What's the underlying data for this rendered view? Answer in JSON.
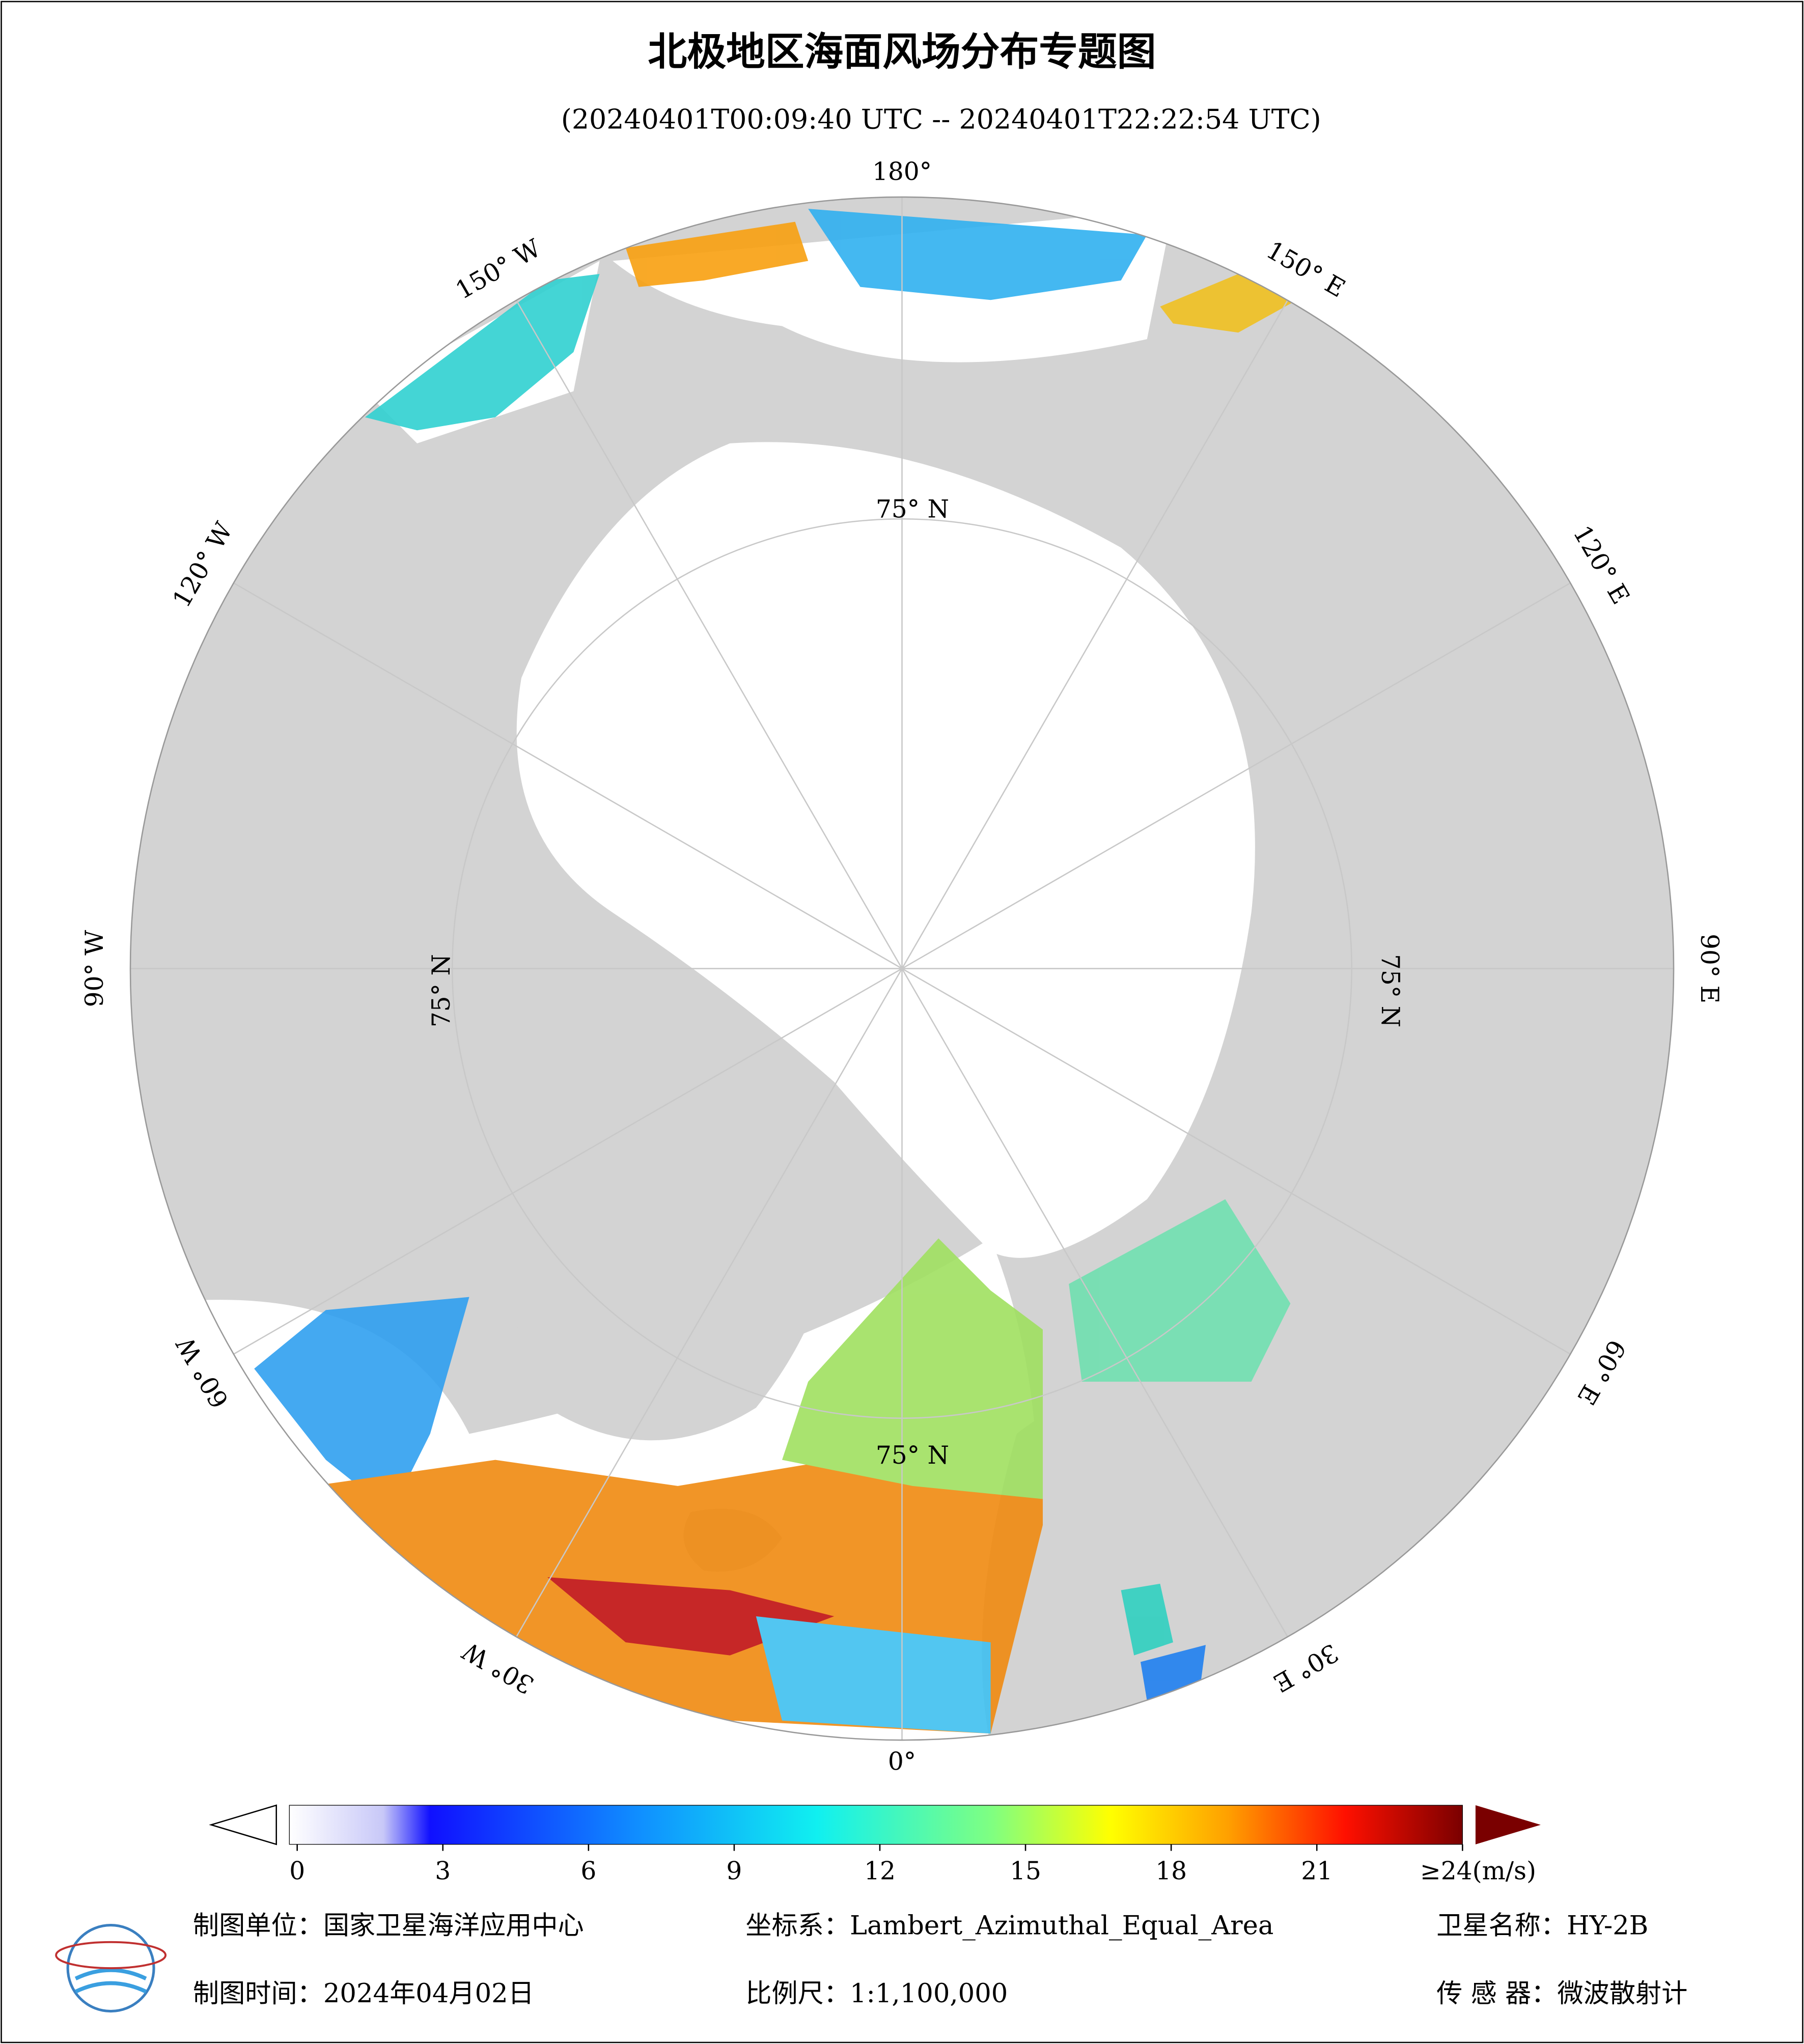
{
  "map": {
    "title": "北极地区海面风场分布专题图",
    "subtitle": "(20240401T00:09:40 UTC -- 20240401T22:22:54 UTC)",
    "lon_labels": [
      "180°",
      "150° E",
      "120° E",
      "90° E",
      "60° E",
      "30° E",
      "0°",
      "30° W",
      "60° W",
      "90° W",
      "120° W",
      "150° W"
    ],
    "lat_labels": [
      "75° N",
      "75° N",
      "75° N",
      "75° N"
    ],
    "colorbar": {
      "lim": [
        0,
        24
      ],
      "ticks": [
        0,
        3,
        6,
        9,
        12,
        15,
        18,
        21,
        {
          "value": 24,
          "label": "≥24(m/s)"
        }
      ]
    },
    "footer": {
      "unit": "制图单位：国家卫星海洋应用中心",
      "crs": "坐标系：Lambert_Azimuthal_Equal_Area",
      "satellite": "卫星名称：HY-2B",
      "date": "制图时间：2024年04月02日",
      "scale": "比例尺：1:1,100,000",
      "sensor": "传 感 器：微波散射计"
    }
  }
}
